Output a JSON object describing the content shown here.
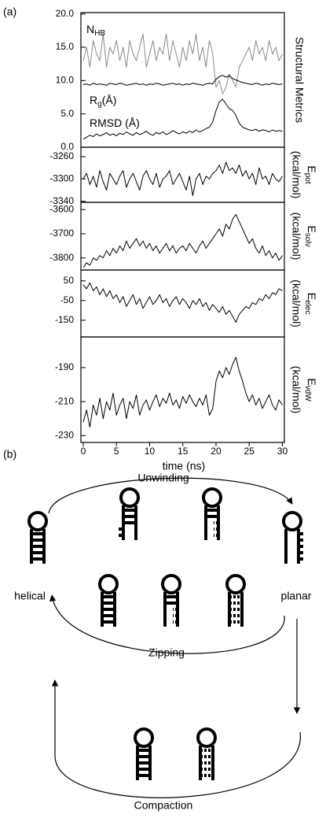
{
  "panel_a_label": "(a)",
  "chart_data": [
    {
      "type": "line",
      "ylabel": "Structural Metrics",
      "x": [
        0,
        0.5,
        1,
        1.5,
        2,
        2.5,
        3,
        3.5,
        4,
        4.5,
        5,
        5.5,
        6,
        6.5,
        7,
        7.5,
        8,
        8.5,
        9,
        9.5,
        10,
        10.5,
        11,
        11.5,
        12,
        12.5,
        13,
        13.5,
        14,
        14.5,
        15,
        15.5,
        16,
        16.5,
        17,
        17.5,
        18,
        18.5,
        19,
        19.5,
        20,
        20.5,
        21,
        21.5,
        22,
        22.5,
        23,
        23.5,
        24,
        24.5,
        25,
        25.5,
        26,
        26.5,
        27,
        27.5,
        28,
        28.5,
        29,
        29.5,
        30
      ],
      "xlim": [
        0,
        30.3
      ],
      "ylim": [
        0,
        20.2
      ],
      "yticks": [
        {
          "value": 0,
          "label": "0.0"
        },
        {
          "value": 5,
          "label": "5.0"
        },
        {
          "value": 10,
          "label": "10.0"
        },
        {
          "value": 15,
          "label": "15.0"
        },
        {
          "value": 20,
          "label": "20.0"
        }
      ],
      "series": [
        {
          "name": "N",
          "name_sub": "HB",
          "color": "#8a8a8a",
          "values": [
            13,
            15,
            12,
            16,
            14,
            13,
            17,
            12,
            15,
            14,
            16,
            13,
            15,
            12,
            16,
            14,
            13,
            15,
            17,
            12,
            14,
            16,
            13,
            15,
            14,
            17,
            13,
            16,
            14,
            12,
            15,
            13,
            16,
            14,
            17,
            13,
            15,
            12,
            16,
            14,
            9,
            10,
            8,
            9,
            11,
            10,
            9,
            12,
            13,
            14,
            15,
            13,
            16,
            14,
            15,
            13,
            16,
            14,
            15,
            13,
            14
          ]
        },
        {
          "name": "R",
          "name_sub": "g",
          "name_unit": "(Å)",
          "color": "#000000",
          "values": [
            9.4,
            9.5,
            9.3,
            9.6,
            9.4,
            9.5,
            9.4,
            9.3,
            9.6,
            9.5,
            9.4,
            9.6,
            9.5,
            9.3,
            9.4,
            9.5,
            9.6,
            9.4,
            9.5,
            9.3,
            9.5,
            9.4,
            9.6,
            9.5,
            9.3,
            9.4,
            9.5,
            9.6,
            9.4,
            9.5,
            9.3,
            9.5,
            9.4,
            9.6,
            9.5,
            9.4,
            9.3,
            9.5,
            9.6,
            9.5,
            10.2,
            10.6,
            10.8,
            10.5,
            10.7,
            10.3,
            10.1,
            9.9,
            9.7,
            9.6,
            9.5,
            9.4,
            9.6,
            9.5,
            9.3,
            9.5,
            9.4,
            9.6,
            9.5,
            9.4,
            9.5
          ]
        },
        {
          "name": "RMSD (Å)",
          "color": "#000000",
          "values": [
            1.2,
            1.5,
            1.8,
            1.6,
            2.0,
            1.7,
            1.9,
            2.2,
            1.8,
            2.0,
            1.7,
            2.1,
            1.9,
            2.3,
            2.0,
            1.8,
            2.2,
            1.9,
            2.1,
            2.4,
            2.0,
            1.8,
            2.2,
            2.0,
            2.3,
            1.9,
            2.1,
            2.5,
            2.2,
            2.0,
            2.3,
            2.1,
            2.4,
            2.2,
            2.6,
            2.3,
            2.5,
            2.8,
            3.0,
            3.8,
            5.5,
            6.8,
            7.2,
            6.5,
            5.8,
            5.5,
            4.8,
            3.6,
            3.0,
            2.8,
            2.6,
            2.5,
            2.7,
            2.4,
            2.6,
            2.5,
            2.3,
            2.6,
            2.4,
            2.5,
            2.4
          ]
        }
      ]
    },
    {
      "type": "line",
      "ylabel": "E",
      "ylabel_sub": "pot",
      "ylabel_unit": "(kcal/mol)",
      "x": [
        0,
        0.5,
        1,
        1.5,
        2,
        2.5,
        3,
        3.5,
        4,
        4.5,
        5,
        5.5,
        6,
        6.5,
        7,
        7.5,
        8,
        8.5,
        9,
        9.5,
        10,
        10.5,
        11,
        11.5,
        12,
        12.5,
        13,
        13.5,
        14,
        14.5,
        15,
        15.5,
        16,
        16.5,
        17,
        17.5,
        18,
        18.5,
        19,
        19.5,
        20,
        20.5,
        21,
        21.5,
        22,
        22.5,
        23,
        23.5,
        24,
        24.5,
        25,
        25.5,
        26,
        26.5,
        27,
        27.5,
        28,
        28.5,
        29,
        29.5,
        30
      ],
      "xlim": [
        0,
        30.3
      ],
      "ylim": [
        -3342,
        -3243
      ],
      "yticks": [
        -3260,
        -3300,
        -3340
      ],
      "series": [
        {
          "color": "#000000",
          "values": [
            -3300,
            -3290,
            -3310,
            -3295,
            -3315,
            -3285,
            -3305,
            -3320,
            -3290,
            -3300,
            -3310,
            -3295,
            -3285,
            -3315,
            -3300,
            -3290,
            -3305,
            -3320,
            -3295,
            -3285,
            -3300,
            -3310,
            -3290,
            -3315,
            -3300,
            -3295,
            -3285,
            -3310,
            -3300,
            -3290,
            -3305,
            -3320,
            -3295,
            -3330,
            -3300,
            -3290,
            -3310,
            -3295,
            -3300,
            -3290,
            -3285,
            -3275,
            -3290,
            -3270,
            -3285,
            -3280,
            -3290,
            -3275,
            -3295,
            -3285,
            -3300,
            -3290,
            -3310,
            -3280,
            -3300,
            -3295,
            -3310,
            -3290,
            -3300,
            -3305,
            -3295
          ]
        }
      ]
    },
    {
      "type": "line",
      "ylabel": "E",
      "ylabel_sub": "solv",
      "ylabel_unit": "(kcal/mol)",
      "x": [
        0,
        0.5,
        1,
        1.5,
        2,
        2.5,
        3,
        3.5,
        4,
        4.5,
        5,
        5.5,
        6,
        6.5,
        7,
        7.5,
        8,
        8.5,
        9,
        9.5,
        10,
        10.5,
        11,
        11.5,
        12,
        12.5,
        13,
        13.5,
        14,
        14.5,
        15,
        15.5,
        16,
        16.5,
        17,
        17.5,
        18,
        18.5,
        19,
        19.5,
        20,
        20.5,
        21,
        21.5,
        22,
        22.5,
        23,
        23.5,
        24,
        24.5,
        25,
        25.5,
        26,
        26.5,
        27,
        27.5,
        28,
        28.5,
        29,
        29.5,
        30
      ],
      "xlim": [
        0,
        30.3
      ],
      "ylim": [
        -3850,
        -3570
      ],
      "yticks": [
        -3600,
        -3700,
        -3800
      ],
      "series": [
        {
          "color": "#000000",
          "values": [
            -3840,
            -3820,
            -3830,
            -3800,
            -3810,
            -3790,
            -3800,
            -3770,
            -3790,
            -3760,
            -3780,
            -3750,
            -3770,
            -3730,
            -3760,
            -3740,
            -3720,
            -3750,
            -3730,
            -3760,
            -3740,
            -3770,
            -3750,
            -3780,
            -3760,
            -3740,
            -3770,
            -3750,
            -3780,
            -3760,
            -3750,
            -3770,
            -3740,
            -3760,
            -3780,
            -3750,
            -3730,
            -3760,
            -3740,
            -3720,
            -3700,
            -3680,
            -3710,
            -3660,
            -3680,
            -3640,
            -3620,
            -3650,
            -3680,
            -3710,
            -3740,
            -3720,
            -3760,
            -3780,
            -3750,
            -3790,
            -3770,
            -3800,
            -3780,
            -3810,
            -3790
          ]
        }
      ]
    },
    {
      "type": "line",
      "ylabel": "E",
      "ylabel_sub": "elec",
      "ylabel_unit": "(kcal/mol)",
      "x": [
        0,
        0.5,
        1,
        1.5,
        2,
        2.5,
        3,
        3.5,
        4,
        4.5,
        5,
        5.5,
        6,
        6.5,
        7,
        7.5,
        8,
        8.5,
        9,
        9.5,
        10,
        10.5,
        11,
        11.5,
        12,
        12.5,
        13,
        13.5,
        14,
        14.5,
        15,
        15.5,
        16,
        16.5,
        17,
        17.5,
        18,
        18.5,
        19,
        19.5,
        20,
        20.5,
        21,
        21.5,
        22,
        22.5,
        23,
        23.5,
        24,
        24.5,
        25,
        25.5,
        26,
        26.5,
        27,
        27.5,
        28,
        28.5,
        29,
        29.5,
        30
      ],
      "xlim": [
        0,
        30.3
      ],
      "ylim": [
        -235,
        105
      ],
      "yticks": [
        50,
        -50,
        -150
      ],
      "series": [
        {
          "color": "#000000",
          "values": [
            30,
            10,
            40,
            0,
            20,
            -20,
            10,
            -30,
            0,
            -40,
            -20,
            -60,
            -30,
            -80,
            -50,
            -20,
            -70,
            -40,
            -90,
            -60,
            -30,
            -70,
            -50,
            -20,
            -60,
            -40,
            -80,
            -50,
            -30,
            -70,
            -40,
            -60,
            -90,
            -50,
            -70,
            -40,
            -80,
            -60,
            -100,
            -70,
            -90,
            -110,
            -80,
            -120,
            -100,
            -130,
            -160,
            -120,
            -100,
            -80,
            -90,
            -60,
            -70,
            -40,
            -50,
            -20,
            -40,
            -10,
            -20,
            10,
            0
          ]
        }
      ]
    },
    {
      "type": "line",
      "ylabel": "E",
      "ylabel_sub": "vdW",
      "ylabel_unit": "(kcal/mol)",
      "x": [
        0,
        0.5,
        1,
        1.5,
        2,
        2.5,
        3,
        3.5,
        4,
        4.5,
        5,
        5.5,
        6,
        6.5,
        7,
        7.5,
        8,
        8.5,
        9,
        9.5,
        10,
        10.5,
        11,
        11.5,
        12,
        12.5,
        13,
        13.5,
        14,
        14.5,
        15,
        15.5,
        16,
        16.5,
        17,
        17.5,
        18,
        18.5,
        19,
        19.5,
        20,
        20.5,
        21,
        21.5,
        22,
        22.5,
        23,
        23.5,
        24,
        24.5,
        25,
        25.5,
        26,
        26.5,
        27,
        27.5,
        28,
        28.5,
        29,
        29.5,
        30
      ],
      "xlim": [
        0,
        30.3
      ],
      "ylim": [
        -234,
        -172
      ],
      "yticks": [
        -190,
        -210,
        -230
      ],
      "xticks": [
        0,
        5,
        10,
        15,
        20,
        25,
        30
      ],
      "xlabel": "time (ns)",
      "series": [
        {
          "color": "#000000",
          "values": [
            -222,
            -215,
            -225,
            -212,
            -218,
            -208,
            -220,
            -210,
            -215,
            -205,
            -218,
            -212,
            -208,
            -220,
            -210,
            -214,
            -206,
            -218,
            -212,
            -209,
            -215,
            -210,
            -206,
            -213,
            -208,
            -211,
            -205,
            -212,
            -209,
            -214,
            -207,
            -211,
            -206,
            -210,
            -213,
            -208,
            -212,
            -206,
            -218,
            -214,
            -198,
            -192,
            -196,
            -190,
            -194,
            -188,
            -184,
            -192,
            -198,
            -205,
            -210,
            -206,
            -212,
            -208,
            -214,
            -210,
            -206,
            -212,
            -215,
            -209,
            -212
          ]
        }
      ]
    }
  ],
  "diagram": {
    "label": "(b)",
    "unwinding": "Unwinding",
    "helical": "helical",
    "planar": "planar",
    "zipping": "Zipping",
    "compaction": "Compaction"
  }
}
